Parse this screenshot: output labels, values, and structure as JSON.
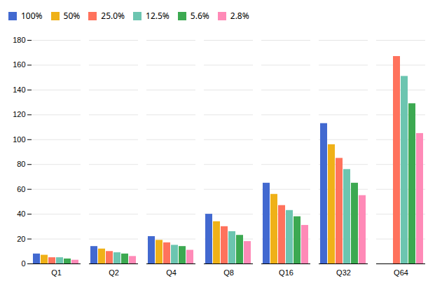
{
  "chart_data": {
    "type": "bar",
    "categories": [
      "Q1",
      "Q2",
      "Q4",
      "Q8",
      "Q16",
      "Q32",
      "Q64"
    ],
    "series": [
      {
        "name": "100%",
        "values": [
          8,
          14,
          22,
          40,
          65,
          113,
          0
        ]
      },
      {
        "name": "50%",
        "values": [
          7,
          12,
          19,
          34,
          56,
          96,
          0
        ]
      },
      {
        "name": "25.0%",
        "values": [
          5,
          10,
          17,
          30,
          47,
          85,
          167
        ]
      },
      {
        "name": "12.5%",
        "values": [
          5,
          9,
          15,
          26,
          43,
          76,
          151
        ]
      },
      {
        "name": "5.6%",
        "values": [
          4,
          8,
          14,
          23,
          38,
          65,
          129
        ]
      },
      {
        "name": "2.8%",
        "values": [
          3,
          6,
          11,
          18,
          31,
          55,
          105
        ]
      }
    ],
    "ylim": [
      0,
      180
    ],
    "yticks": [
      0,
      20,
      40,
      60,
      80,
      100,
      120,
      140,
      160,
      180
    ],
    "grid": true,
    "legend": "top"
  }
}
